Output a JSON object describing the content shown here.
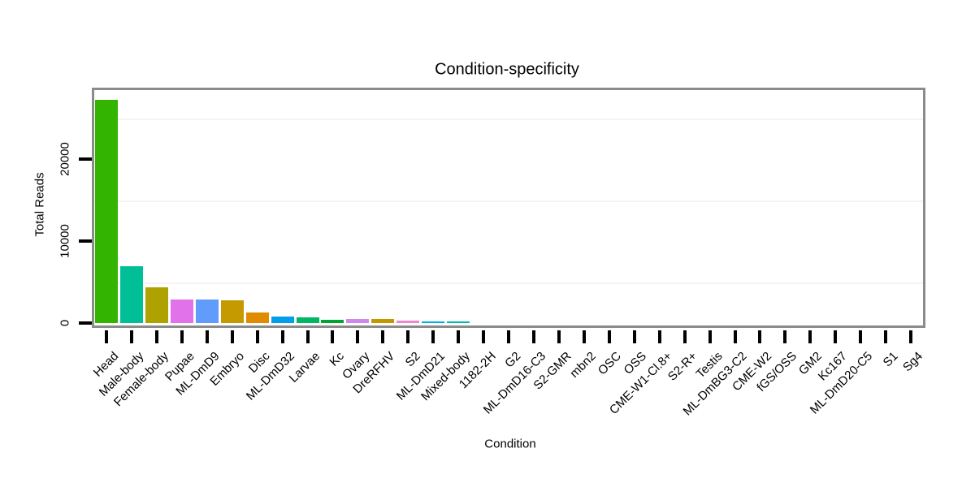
{
  "chart_data": {
    "type": "bar",
    "title": "Condition-specificity",
    "xlabel": "Condition",
    "ylabel": "Total Reads",
    "ylim": [
      0,
      28500
    ],
    "yticks": [
      0,
      10000,
      20000
    ],
    "ytick_labels": [
      "0",
      "10000",
      "20000"
    ],
    "gridlines": [
      5000,
      15000,
      25000
    ],
    "grid": "minor-only",
    "legend": "none",
    "categories": [
      "Head",
      "Male-body",
      "Female-body",
      "Pupae",
      "ML-DmD9",
      "Embryo",
      "Disc",
      "ML-DmD32",
      "Larvae",
      "Kc",
      "Ovary",
      "DreRFHV",
      "S2",
      "ML-DmD21",
      "Mixed-body",
      "1182-2H",
      "G2",
      "ML-DmD16-C3",
      "S2-GMR",
      "mbn2",
      "OSC",
      "OSS",
      "CME-W1-Cl.8+",
      "S2-R+",
      "Testis",
      "ML-DmBG3-C2",
      "CME-W2",
      "fGS/OSS",
      "GM2",
      "Kc167",
      "ML-DmD20-C5",
      "S1",
      "Sg4"
    ],
    "values": [
      27200,
      6900,
      4350,
      2870,
      2870,
      2770,
      1250,
      820,
      650,
      420,
      450,
      450,
      250,
      210,
      210,
      0,
      0,
      0,
      0,
      0,
      0,
      0,
      0,
      0,
      0,
      0,
      0,
      0,
      0,
      0,
      0,
      0,
      0
    ],
    "bar_colors": [
      "#33b400",
      "#00bf97",
      "#aea200",
      "#e272ea",
      "#619bfb",
      "#c49a00",
      "#e08b00",
      "#00a0e8",
      "#00b863",
      "#00a62f",
      "#cf87ee",
      "#c79700",
      "#ee86cc",
      "#00aeea",
      "#00bab6",
      null,
      null,
      null,
      null,
      null,
      null,
      null,
      null,
      null,
      null,
      null,
      null,
      null,
      null,
      null,
      null,
      null,
      null
    ],
    "colors": {
      "plot_border": "#8b8b8b",
      "tick": "#000000",
      "gridline": "#f4f4f4",
      "text": "#000000",
      "background": "#ffffff"
    }
  }
}
